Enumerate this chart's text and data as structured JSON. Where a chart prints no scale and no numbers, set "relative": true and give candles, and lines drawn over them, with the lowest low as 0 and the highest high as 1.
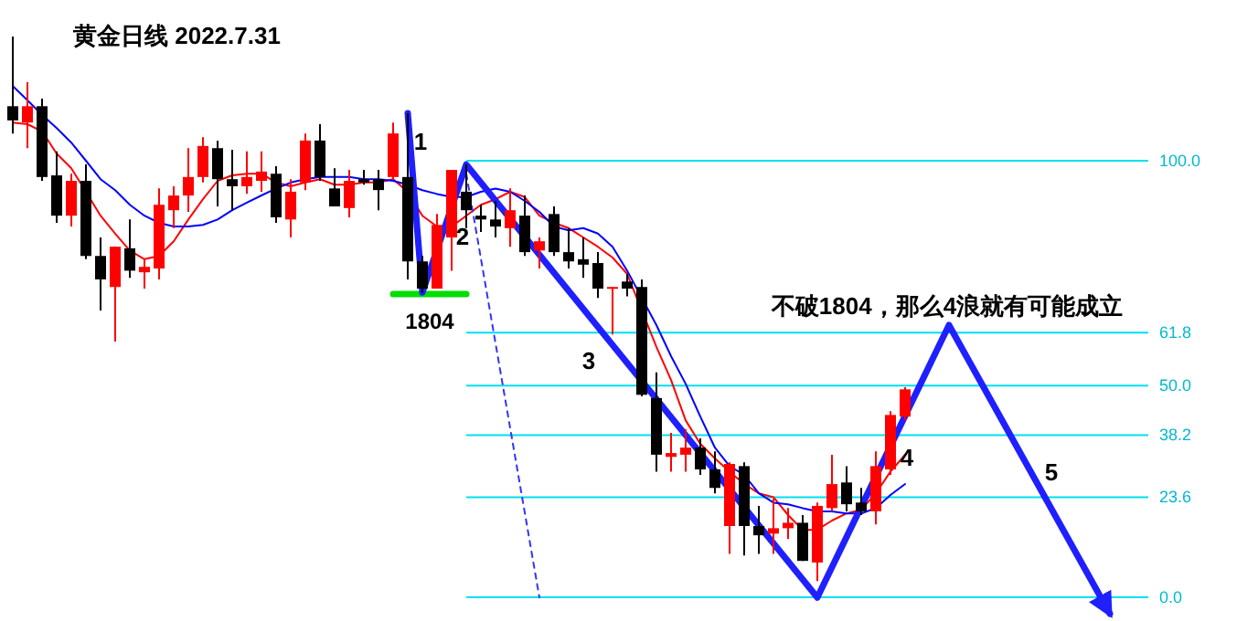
{
  "chart_data": {
    "type": "candlestick",
    "title": "黄金日线 2022.7.31",
    "relative": true,
    "categories": [
      null,
      null,
      null,
      null,
      null,
      null,
      null,
      null,
      null,
      null,
      null,
      null,
      null,
      null,
      null,
      null,
      null,
      null,
      null,
      null,
      null,
      null,
      null,
      null,
      null,
      null,
      null,
      null,
      null,
      null,
      null,
      null,
      null,
      null,
      null,
      null,
      null,
      null,
      null,
      null,
      null,
      null,
      null,
      null,
      null,
      null,
      null,
      null,
      null,
      null,
      null,
      null,
      null,
      null,
      null,
      null,
      null,
      null,
      null,
      null,
      null,
      null,
      null,
      null,
      null,
      null,
      null,
      null,
      null,
      null,
      null,
      null,
      null,
      null,
      null,
      null,
      null,
      null,
      null,
      null,
      null,
      null
    ],
    "ohlc": [
      [
        0.872,
        1.0,
        0.822,
        0.846
      ],
      [
        0.842,
        0.916,
        0.795,
        0.872
      ],
      [
        0.872,
        0.886,
        0.735,
        0.742
      ],
      [
        0.745,
        0.789,
        0.658,
        0.671
      ],
      [
        0.671,
        0.748,
        0.651,
        0.735
      ],
      [
        0.735,
        0.765,
        0.591,
        0.597
      ],
      [
        0.597,
        0.631,
        0.497,
        0.554
      ],
      [
        0.54,
        0.614,
        0.44,
        0.614
      ],
      [
        0.611,
        0.664,
        0.557,
        0.57
      ],
      [
        0.567,
        0.591,
        0.537,
        0.577
      ],
      [
        0.574,
        0.721,
        0.554,
        0.691
      ],
      [
        0.681,
        0.725,
        0.648,
        0.708
      ],
      [
        0.708,
        0.795,
        0.678,
        0.742
      ],
      [
        0.742,
        0.815,
        0.732,
        0.799
      ],
      [
        0.795,
        0.809,
        0.688,
        0.738
      ],
      [
        0.738,
        0.792,
        0.681,
        0.725
      ],
      [
        0.725,
        0.789,
        0.711,
        0.742
      ],
      [
        0.735,
        0.789,
        0.715,
        0.752
      ],
      [
        0.748,
        0.762,
        0.658,
        0.668
      ],
      [
        0.664,
        0.738,
        0.631,
        0.715
      ],
      [
        0.732,
        0.822,
        0.718,
        0.809
      ],
      [
        0.809,
        0.839,
        0.735,
        0.742
      ],
      [
        0.721,
        0.758,
        0.688,
        0.688
      ],
      [
        0.685,
        0.755,
        0.668,
        0.735
      ],
      [
        0.738,
        0.755,
        0.728,
        0.732
      ],
      [
        0.738,
        0.755,
        0.681,
        0.718
      ],
      [
        0.742,
        0.842,
        0.738,
        0.822
      ],
      [
        0.742,
        0.859,
        0.554,
        0.587
      ],
      [
        0.587,
        0.597,
        0.53,
        0.537
      ],
      [
        0.537,
        0.674,
        0.537,
        0.654
      ],
      [
        0.631,
        0.755,
        0.57,
        0.755
      ],
      [
        0.715,
        0.765,
        0.648,
        0.681
      ],
      [
        0.671,
        0.691,
        0.641,
        0.664
      ],
      [
        0.664,
        0.698,
        0.631,
        0.651
      ],
      [
        0.648,
        0.721,
        0.614,
        0.681
      ],
      [
        0.671,
        0.708,
        0.597,
        0.604
      ],
      [
        0.607,
        0.631,
        0.574,
        0.624
      ],
      [
        0.674,
        0.688,
        0.597,
        0.604
      ],
      [
        0.604,
        0.648,
        0.574,
        0.587
      ],
      [
        0.591,
        0.631,
        0.557,
        0.581
      ],
      [
        0.584,
        0.604,
        0.52,
        0.537
      ],
      [
        0.537,
        0.54,
        0.453,
        0.54
      ],
      [
        0.55,
        0.564,
        0.523,
        0.537
      ],
      [
        0.54,
        0.554,
        0.339,
        0.342
      ],
      [
        0.336,
        0.383,
        0.201,
        0.232
      ],
      [
        0.228,
        0.272,
        0.201,
        0.235
      ],
      [
        0.232,
        0.279,
        0.201,
        0.245
      ],
      [
        0.245,
        0.262,
        0.195,
        0.205
      ],
      [
        0.205,
        0.238,
        0.161,
        0.171
      ],
      [
        0.101,
        0.218,
        0.05,
        0.215
      ],
      [
        0.211,
        0.218,
        0.047,
        0.101
      ],
      [
        0.101,
        0.138,
        0.05,
        0.084
      ],
      [
        0.087,
        0.151,
        0.05,
        0.097
      ],
      [
        0.097,
        0.134,
        0.077,
        0.107
      ],
      [
        0.107,
        0.121,
        0.037,
        0.037
      ],
      [
        0.034,
        0.144,
        0.0,
        0.138
      ],
      [
        0.134,
        0.232,
        0.128,
        0.178
      ],
      [
        0.181,
        0.211,
        0.128,
        0.141
      ],
      [
        0.144,
        0.171,
        0.121,
        0.128
      ],
      [
        0.128,
        0.238,
        0.104,
        0.211
      ],
      [
        0.205,
        0.312,
        0.195,
        0.305
      ],
      [
        0.302,
        0.356,
        0.295,
        0.352
      ],
      null,
      null,
      null,
      null,
      null,
      null,
      null,
      null,
      null,
      null,
      null,
      null,
      null,
      null,
      null,
      null,
      null,
      null,
      null,
      null
    ],
    "colors": [
      "#000000",
      "#ff0000",
      "#000000",
      "#000000",
      "#ff0000",
      "#000000",
      "#000000",
      "#ff0000",
      "#000000",
      "#ff0000",
      "#ff0000",
      "#ff0000",
      "#ff0000",
      "#ff0000",
      "#000000",
      "#000000",
      "#ff0000",
      "#ff0000",
      "#000000",
      "#ff0000",
      "#ff0000",
      "#000000",
      "#000000",
      "#ff0000",
      "#000000",
      "#000000",
      "#ff0000",
      "#000000",
      "#000000",
      "#ff0000",
      "#ff0000",
      "#000000",
      "#000000",
      "#000000",
      "#ff0000",
      "#000000",
      "#ff0000",
      "#000000",
      "#000000",
      "#000000",
      "#000000",
      "#ff0000",
      "#000000",
      "#000000",
      "#000000",
      "#ff0000",
      "#ff0000",
      "#000000",
      "#000000",
      "#ff0000",
      "#000000",
      "#000000",
      "#ff0000",
      "#ff0000",
      "#000000",
      "#ff0000",
      "#ff0000",
      "#000000",
      "#000000",
      "#ff0000",
      "#ff0000",
      "#ff0000",
      null,
      null,
      null,
      null,
      null,
      null,
      null,
      null,
      null,
      null,
      null,
      null,
      null,
      null,
      null,
      null,
      null,
      null,
      null,
      null
    ],
    "series": [
      {
        "type": "line",
        "color": "#ff0000",
        "values": [
          0.842,
          0.839,
          0.826,
          0.785,
          0.758,
          0.715,
          0.671,
          0.638,
          0.607,
          0.591,
          0.597,
          0.624,
          0.664,
          0.701,
          0.735,
          0.745,
          0.748,
          0.748,
          0.732,
          0.725,
          0.732,
          0.738,
          0.728,
          0.728,
          0.732,
          0.732,
          0.738,
          0.715,
          0.671,
          0.651,
          0.651,
          0.671,
          0.691,
          0.701,
          0.715,
          0.705,
          0.671,
          0.658,
          0.648,
          0.631,
          0.614,
          0.594,
          0.564,
          null,
          0.43,
          0.369,
          0.295,
          0.252,
          0.225,
          0.201,
          0.178,
          0.161,
          0.154,
          0.121,
          0.094,
          0.094,
          0.111,
          0.124,
          0.131,
          0.161,
          0.201,
          0.232,
          null,
          null,
          null,
          null,
          null,
          null,
          null,
          null,
          null,
          null,
          null,
          null,
          null,
          null,
          null,
          null,
          null,
          null,
          null,
          null
        ]
      },
      {
        "type": "line",
        "color": "#0000ff",
        "values": [
          0.909,
          0.883,
          0.856,
          0.832,
          0.805,
          0.772,
          0.738,
          0.718,
          0.691,
          0.671,
          0.658,
          0.651,
          0.651,
          0.654,
          0.664,
          0.681,
          0.695,
          0.708,
          0.721,
          0.732,
          0.738,
          0.742,
          0.742,
          0.742,
          0.738,
          0.738,
          0.735,
          0.728,
          0.718,
          0.711,
          0.705,
          0.705,
          0.715,
          0.721,
          0.715,
          0.698,
          0.678,
          0.651,
          0.644,
          0.648,
          0.638,
          0.614,
          0.57,
          null,
          0.47,
          0.413,
          0.362,
          0.302,
          0.245,
          0.211,
          0.195,
          0.161,
          0.144,
          0.141,
          0.134,
          0.128,
          0.128,
          0.124,
          0.124,
          0.134,
          0.158,
          0.178,
          null,
          null,
          null,
          null,
          null,
          null,
          null,
          null,
          null,
          null,
          null,
          null,
          null,
          null,
          null,
          null,
          null,
          null,
          null,
          null
        ]
      },
      {
        "type": "line",
        "name": "1804",
        "color": "#00dd00",
        "values": [
          null,
          null,
          null,
          null,
          null,
          null,
          null,
          null,
          null,
          null,
          null,
          null,
          null,
          null,
          null,
          null,
          null,
          null,
          null,
          null,
          null,
          null,
          null,
          null,
          null,
          null,
          0.527,
          null,
          null,
          null,
          null,
          0.527,
          null,
          null,
          null,
          null,
          null,
          null,
          null,
          null,
          null,
          null,
          null,
          null,
          null,
          null,
          null,
          null,
          null,
          null,
          null,
          null,
          null,
          null,
          null,
          null,
          null,
          null,
          null,
          null,
          null,
          null,
          null,
          null,
          null,
          null,
          null,
          null,
          null,
          null,
          null,
          null,
          null,
          null,
          null,
          null,
          null,
          null,
          null,
          null,
          null,
          null
        ]
      },
      {
        "type": "line",
        "color": "#1f1fff",
        "values": [
          null,
          null,
          null,
          null,
          null,
          null,
          null,
          null,
          null,
          null,
          null,
          null,
          null,
          null,
          null,
          null,
          null,
          null,
          null,
          null,
          null,
          null,
          null,
          null,
          null,
          null,
          null,
          0.859,
          0.53,
          null,
          null,
          0.765,
          null,
          null,
          null,
          null,
          null,
          null,
          null,
          null,
          null,
          null,
          null,
          null,
          null,
          null,
          null,
          null,
          null,
          null,
          null,
          null,
          null,
          null,
          null,
          -0.03,
          null,
          null,
          null,
          null,
          null,
          null,
          null,
          null,
          0.47,
          null,
          null,
          null,
          null,
          null,
          null,
          null,
          null,
          null,
          null,
          -0.06,
          null,
          null,
          null,
          null,
          null,
          null
        ]
      },
      {
        "type": "line",
        "color": "#3333ff",
        "line_style": "dashed",
        "values": [
          null,
          null,
          null,
          null,
          null,
          null,
          null,
          null,
          null,
          null,
          null,
          null,
          null,
          null,
          null,
          null,
          null,
          null,
          null,
          null,
          null,
          null,
          null,
          null,
          null,
          null,
          null,
          null,
          null,
          null,
          null,
          0.748,
          null,
          null,
          null,
          null,
          -0.03,
          null,
          null,
          null,
          null,
          null,
          null,
          null,
          null,
          null,
          null,
          null,
          null,
          null,
          null,
          null,
          null,
          null,
          null,
          null,
          null,
          null,
          null,
          null,
          null,
          null,
          null,
          null,
          null,
          null,
          null,
          null,
          null,
          null,
          null,
          null,
          null,
          null,
          null,
          null,
          null,
          null,
          null,
          null,
          null,
          null
        ]
      }
    ],
    "ref_lines": [
      {
        "axis": "y",
        "value": 0.772,
        "color": "#00e0f0"
      },
      {
        "axis": "y",
        "value": 0.456,
        "color": "#00e0f0"
      },
      {
        "axis": "y",
        "value": 0.359,
        "color": "#00e0f0"
      },
      {
        "axis": "y",
        "value": 0.268,
        "color": "#00e0f0"
      },
      {
        "axis": "y",
        "value": 0.154,
        "color": "#00e0f0"
      },
      {
        "axis": "y",
        "value": -0.03,
        "color": "#00e0f0"
      }
    ],
    "annotations": [
      "1",
      "2",
      "3",
      "4",
      "5",
      "不破1804，那么4浪就有可能成立",
      "100.0",
      "61.8",
      "50.0",
      "38.2",
      "23.6",
      "0.0"
    ]
  }
}
